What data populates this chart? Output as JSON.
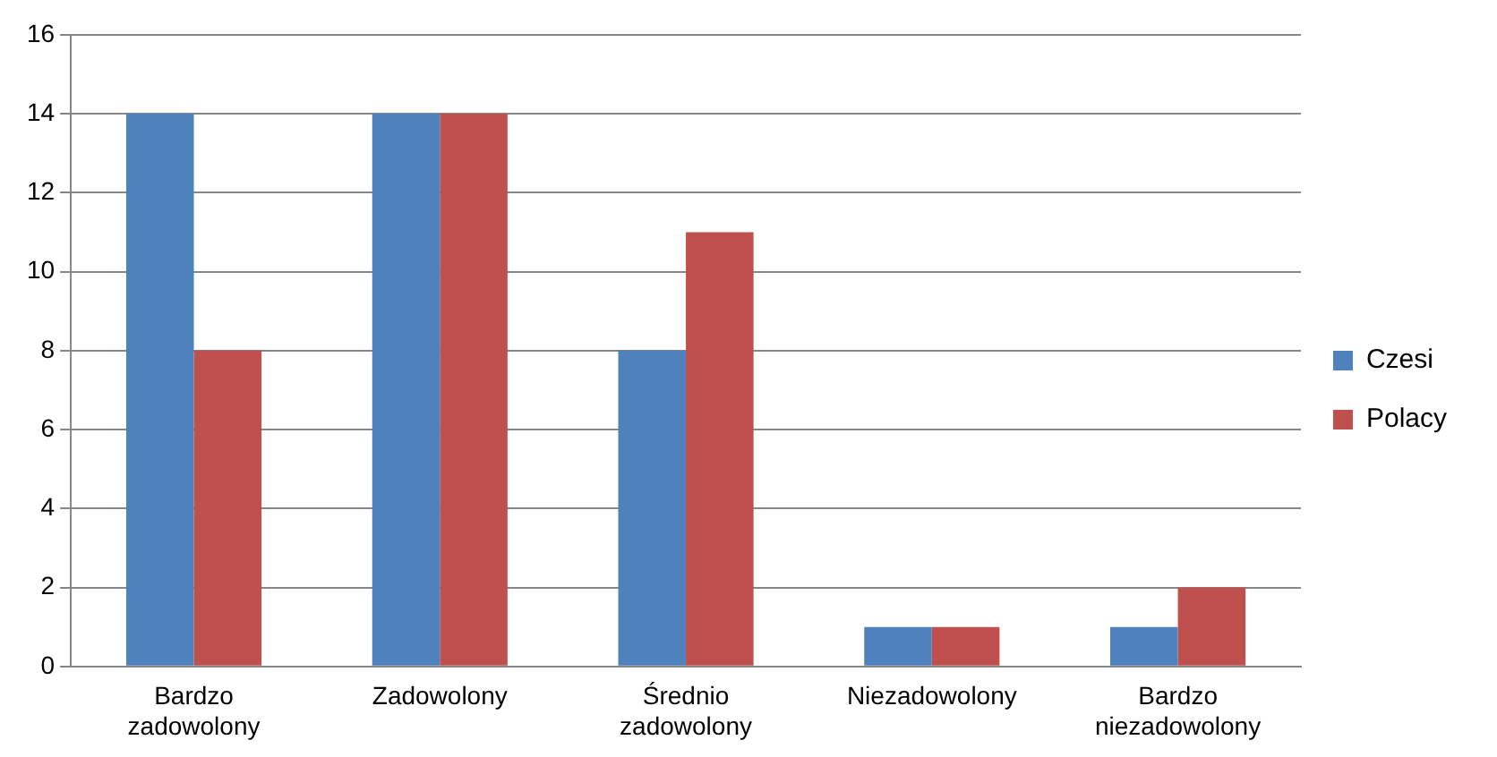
{
  "chart_data": {
    "type": "bar",
    "categories": [
      "Bardzo zadowolony",
      "Zadowolony",
      "Średnio zadowolony",
      "Niezadowolony",
      "Bardzo niezadowolony"
    ],
    "series": [
      {
        "name": "Czesi",
        "color": "#4f81bd",
        "values": [
          14,
          14,
          8,
          1,
          1
        ]
      },
      {
        "name": "Polacy",
        "color": "#c0504d",
        "values": [
          8,
          14,
          11,
          1,
          2
        ]
      }
    ],
    "ylim": [
      0,
      16
    ],
    "yticks": [
      0,
      2,
      4,
      6,
      8,
      10,
      12,
      14,
      16
    ],
    "grid": "y",
    "legend": "right"
  }
}
